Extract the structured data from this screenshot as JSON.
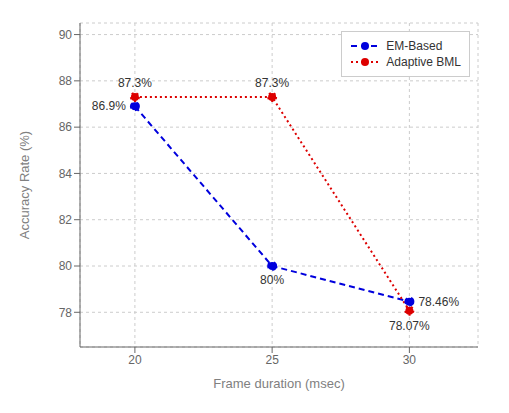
{
  "chart_data": {
    "type": "line",
    "x": [
      20,
      25,
      30
    ],
    "xlabel": "Frame duration (msec)",
    "ylabel": "Accuracy Rate (%)",
    "xlim": [
      18.0,
      32.5
    ],
    "ylim": [
      76.5,
      90.5
    ],
    "xticks": [
      20,
      25,
      30
    ],
    "yticks": [
      78,
      80,
      82,
      84,
      86,
      88,
      90
    ],
    "grid": true,
    "legend": "upper right",
    "data_labels": true,
    "series": [
      {
        "name": "EM-Based",
        "color": "#0000dd",
        "line_style": "dashed",
        "marker": "circle",
        "values": [
          86.9,
          80.0,
          78.46
        ],
        "value_labels": [
          "86.9%",
          "80%",
          "78.46%"
        ]
      },
      {
        "name": "Adaptive BML",
        "color": "#dd0000",
        "line_style": "dotted",
        "marker": "circle",
        "values": [
          87.3,
          87.3,
          78.07
        ],
        "value_labels": [
          "87.3%",
          "87.3%",
          "78.07%"
        ]
      }
    ]
  }
}
